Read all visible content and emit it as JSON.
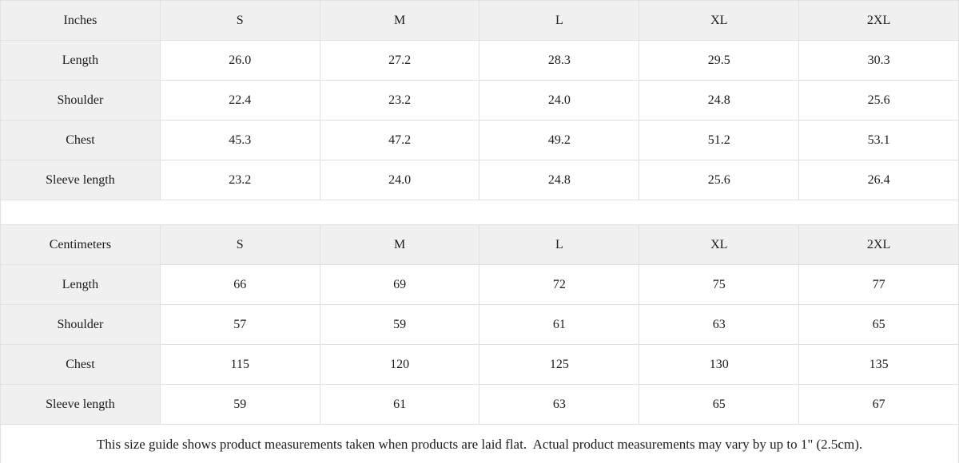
{
  "tables": {
    "inches": {
      "unit_label": "Inches",
      "sizes": [
        "S",
        "M",
        "L",
        "XL",
        "2XL"
      ],
      "rows": [
        {
          "label": "Length",
          "values": [
            "26.0",
            "27.2",
            "28.3",
            "29.5",
            "30.3"
          ]
        },
        {
          "label": "Shoulder",
          "values": [
            "22.4",
            "23.2",
            "24.0",
            "24.8",
            "25.6"
          ]
        },
        {
          "label": "Chest",
          "values": [
            "45.3",
            "47.2",
            "49.2",
            "51.2",
            "53.1"
          ]
        },
        {
          "label": "Sleeve length",
          "values": [
            "23.2",
            "24.0",
            "24.8",
            "25.6",
            "26.4"
          ]
        }
      ]
    },
    "centimeters": {
      "unit_label": "Centimeters",
      "sizes": [
        "S",
        "M",
        "L",
        "XL",
        "2XL"
      ],
      "rows": [
        {
          "label": "Length",
          "values": [
            "66",
            "69",
            "72",
            "75",
            "77"
          ]
        },
        {
          "label": "Shoulder",
          "values": [
            "57",
            "59",
            "61",
            "63",
            "65"
          ]
        },
        {
          "label": "Chest",
          "values": [
            "115",
            "120",
            "125",
            "130",
            "135"
          ]
        },
        {
          "label": "Sleeve length",
          "values": [
            "59",
            "61",
            "63",
            "65",
            "67"
          ]
        }
      ]
    }
  },
  "footer": {
    "note": "This size guide shows product measurements taken when products are laid flat.  Actual product measurements may vary by up to 1\" (2.5cm)."
  },
  "colors": {
    "header_bg": "#f0f0f0",
    "border": "#e0e0e0",
    "text": "#1c1c1c"
  }
}
